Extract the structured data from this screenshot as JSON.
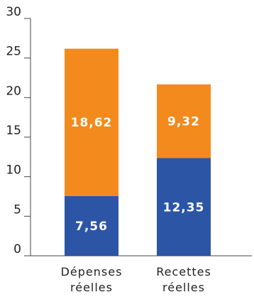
{
  "chart_data": {
    "type": "bar",
    "stacked": true,
    "categories": [
      [
        "Dépenses",
        "réelles"
      ],
      [
        "Recettes",
        "réelles"
      ]
    ],
    "series": [
      {
        "values": [
          7.56,
          12.35
        ],
        "labels": [
          "7,56",
          "12,35"
        ],
        "color": "#2c56a5"
      },
      {
        "values": [
          18.62,
          9.32
        ],
        "labels": [
          "18,62",
          "9,32"
        ],
        "color": "#f28a1e"
      }
    ],
    "ylim": [
      0,
      30
    ],
    "yticks": [
      0,
      5,
      10,
      15,
      20,
      25,
      30
    ],
    "ytick_labels": [
      "0",
      "5",
      "10",
      "15",
      "20",
      "25",
      "30"
    ],
    "grid": false,
    "axis_color": "#444444"
  }
}
